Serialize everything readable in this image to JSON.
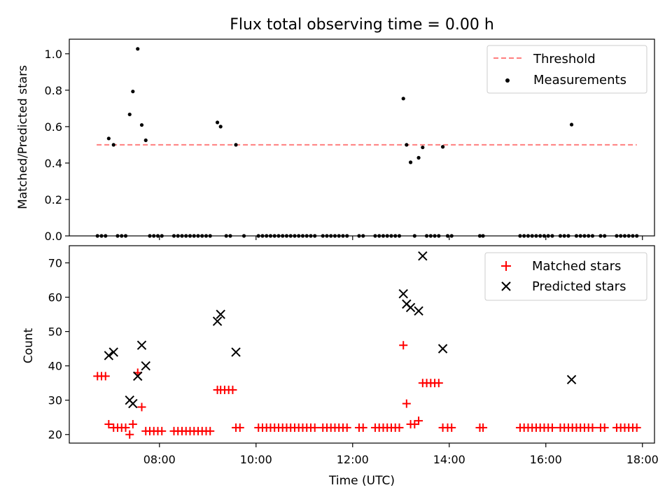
{
  "chart_data": [
    {
      "type": "scatter",
      "title": "Flux total observing time = 0.00 h",
      "xlabel": "",
      "ylabel": "Matched/Predicted stars",
      "xlim": [
        "06:08",
        "18:15"
      ],
      "ylim": [
        0,
        1.08
      ],
      "yticks": [
        0.0,
        0.2,
        0.4,
        0.6,
        0.8,
        1.0
      ],
      "ytick_labels": [
        "0.0",
        "0.2",
        "0.4",
        "0.6",
        "0.8",
        "1.0"
      ],
      "xticks": [
        "08:00",
        "10:00",
        "12:00",
        "14:00",
        "16:00",
        "18:00"
      ],
      "grid": false,
      "legend": "top-right",
      "threshold": {
        "name": "Threshold",
        "value": 0.5,
        "x_range": [
          "06:42",
          "17:53"
        ],
        "color": "#ff7f7f"
      },
      "series": [
        {
          "name": "Measurements",
          "marker": "dot",
          "color": "#000000",
          "points": [
            [
              "06:57",
              0.535
            ],
            [
              "07:03",
              0.5
            ],
            [
              "07:23",
              0.667
            ],
            [
              "07:27",
              0.793
            ],
            [
              "07:33",
              1.027
            ],
            [
              "07:38",
              0.609
            ],
            [
              "07:43",
              0.525
            ],
            [
              "09:12",
              0.623
            ],
            [
              "09:16",
              0.6
            ],
            [
              "09:35",
              0.5
            ],
            [
              "13:03",
              0.754
            ],
            [
              "13:07",
              0.5
            ],
            [
              "13:12",
              0.404
            ],
            [
              "13:22",
              0.429
            ],
            [
              "13:27",
              0.486
            ],
            [
              "13:52",
              0.489
            ],
            [
              "16:32",
              0.611
            ],
            [
              "06:43",
              0
            ],
            [
              "06:48",
              0
            ],
            [
              "06:53",
              0
            ],
            [
              "07:08",
              0
            ],
            [
              "07:13",
              0
            ],
            [
              "07:18",
              0
            ],
            [
              "07:48",
              0
            ],
            [
              "07:53",
              0
            ],
            [
              "07:58",
              0
            ],
            [
              "08:03",
              0
            ],
            [
              "08:18",
              0
            ],
            [
              "08:23",
              0
            ],
            [
              "08:28",
              0
            ],
            [
              "08:33",
              0
            ],
            [
              "08:38",
              0
            ],
            [
              "08:43",
              0
            ],
            [
              "08:48",
              0
            ],
            [
              "08:53",
              0
            ],
            [
              "08:58",
              0
            ],
            [
              "09:03",
              0
            ],
            [
              "09:23",
              0
            ],
            [
              "09:28",
              0
            ],
            [
              "09:45",
              0
            ],
            [
              "10:03",
              0
            ],
            [
              "10:08",
              0
            ],
            [
              "10:13",
              0
            ],
            [
              "10:18",
              0
            ],
            [
              "10:23",
              0
            ],
            [
              "10:28",
              0
            ],
            [
              "10:33",
              0
            ],
            [
              "10:38",
              0
            ],
            [
              "10:43",
              0
            ],
            [
              "10:48",
              0
            ],
            [
              "10:53",
              0
            ],
            [
              "10:58",
              0
            ],
            [
              "11:03",
              0
            ],
            [
              "11:08",
              0
            ],
            [
              "11:13",
              0
            ],
            [
              "11:23",
              0
            ],
            [
              "11:28",
              0
            ],
            [
              "11:33",
              0
            ],
            [
              "11:38",
              0
            ],
            [
              "11:43",
              0
            ],
            [
              "11:48",
              0
            ],
            [
              "11:53",
              0
            ],
            [
              "12:08",
              0
            ],
            [
              "12:13",
              0
            ],
            [
              "12:28",
              0
            ],
            [
              "12:33",
              0
            ],
            [
              "12:38",
              0
            ],
            [
              "12:43",
              0
            ],
            [
              "12:48",
              0
            ],
            [
              "12:53",
              0
            ],
            [
              "12:58",
              0
            ],
            [
              "13:17",
              0
            ],
            [
              "13:32",
              0
            ],
            [
              "13:37",
              0
            ],
            [
              "13:42",
              0
            ],
            [
              "13:47",
              0
            ],
            [
              "13:58",
              0
            ],
            [
              "14:03",
              0
            ],
            [
              "14:38",
              0
            ],
            [
              "14:42",
              0
            ],
            [
              "15:28",
              0
            ],
            [
              "15:33",
              0
            ],
            [
              "15:38",
              0
            ],
            [
              "15:43",
              0
            ],
            [
              "15:48",
              0
            ],
            [
              "15:53",
              0
            ],
            [
              "15:58",
              0
            ],
            [
              "16:03",
              0
            ],
            [
              "16:08",
              0
            ],
            [
              "16:18",
              0
            ],
            [
              "16:23",
              0
            ],
            [
              "16:28",
              0
            ],
            [
              "16:38",
              0
            ],
            [
              "16:43",
              0
            ],
            [
              "16:48",
              0
            ],
            [
              "16:53",
              0
            ],
            [
              "16:58",
              0
            ],
            [
              "17:08",
              0
            ],
            [
              "17:13",
              0
            ],
            [
              "17:28",
              0
            ],
            [
              "17:33",
              0
            ],
            [
              "17:38",
              0
            ],
            [
              "17:43",
              0
            ],
            [
              "17:48",
              0
            ],
            [
              "17:53",
              0
            ]
          ]
        }
      ]
    },
    {
      "type": "scatter",
      "title": "",
      "xlabel": "Time (UTC)",
      "ylabel": "Count",
      "xlim": [
        "06:08",
        "18:15"
      ],
      "ylim": [
        17.5,
        75
      ],
      "yticks": [
        20,
        30,
        40,
        50,
        60,
        70
      ],
      "ytick_labels": [
        "20",
        "30",
        "40",
        "50",
        "60",
        "70"
      ],
      "xticks": [
        "08:00",
        "10:00",
        "12:00",
        "14:00",
        "16:00",
        "18:00"
      ],
      "xtick_labels": [
        "08:00",
        "10:00",
        "12:00",
        "14:00",
        "16:00",
        "18:00"
      ],
      "grid": false,
      "legend": "top-right",
      "series": [
        {
          "name": "Matched stars",
          "marker": "plus",
          "color": "#ff0000",
          "points": [
            [
              "06:43",
              37
            ],
            [
              "06:48",
              37
            ],
            [
              "06:53",
              37
            ],
            [
              "06:57",
              23
            ],
            [
              "07:03",
              22
            ],
            [
              "07:08",
              22
            ],
            [
              "07:13",
              22
            ],
            [
              "07:18",
              22
            ],
            [
              "07:23",
              20
            ],
            [
              "07:27",
              23
            ],
            [
              "07:33",
              38
            ],
            [
              "07:38",
              28
            ],
            [
              "07:43",
              21
            ],
            [
              "07:48",
              21
            ],
            [
              "07:53",
              21
            ],
            [
              "07:58",
              21
            ],
            [
              "08:03",
              21
            ],
            [
              "08:18",
              21
            ],
            [
              "08:23",
              21
            ],
            [
              "08:28",
              21
            ],
            [
              "08:33",
              21
            ],
            [
              "08:38",
              21
            ],
            [
              "08:43",
              21
            ],
            [
              "08:48",
              21
            ],
            [
              "08:53",
              21
            ],
            [
              "08:58",
              21
            ],
            [
              "09:03",
              21
            ],
            [
              "09:12",
              33
            ],
            [
              "09:16",
              33
            ],
            [
              "09:21",
              33
            ],
            [
              "09:26",
              33
            ],
            [
              "09:31",
              33
            ],
            [
              "09:35",
              22
            ],
            [
              "09:40",
              22
            ],
            [
              "10:03",
              22
            ],
            [
              "10:08",
              22
            ],
            [
              "10:13",
              22
            ],
            [
              "10:18",
              22
            ],
            [
              "10:23",
              22
            ],
            [
              "10:28",
              22
            ],
            [
              "10:33",
              22
            ],
            [
              "10:38",
              22
            ],
            [
              "10:43",
              22
            ],
            [
              "10:48",
              22
            ],
            [
              "10:53",
              22
            ],
            [
              "10:58",
              22
            ],
            [
              "11:03",
              22
            ],
            [
              "11:08",
              22
            ],
            [
              "11:13",
              22
            ],
            [
              "11:23",
              22
            ],
            [
              "11:28",
              22
            ],
            [
              "11:33",
              22
            ],
            [
              "11:38",
              22
            ],
            [
              "11:43",
              22
            ],
            [
              "11:48",
              22
            ],
            [
              "11:53",
              22
            ],
            [
              "12:08",
              22
            ],
            [
              "12:13",
              22
            ],
            [
              "12:28",
              22
            ],
            [
              "12:33",
              22
            ],
            [
              "12:38",
              22
            ],
            [
              "12:43",
              22
            ],
            [
              "12:48",
              22
            ],
            [
              "12:53",
              22
            ],
            [
              "12:58",
              22
            ],
            [
              "13:03",
              46
            ],
            [
              "13:07",
              29
            ],
            [
              "13:12",
              23
            ],
            [
              "13:17",
              23
            ],
            [
              "13:22",
              24
            ],
            [
              "13:27",
              35
            ],
            [
              "13:32",
              35
            ],
            [
              "13:37",
              35
            ],
            [
              "13:42",
              35
            ],
            [
              "13:47",
              35
            ],
            [
              "13:52",
              22
            ],
            [
              "13:58",
              22
            ],
            [
              "14:03",
              22
            ],
            [
              "14:38",
              22
            ],
            [
              "14:42",
              22
            ],
            [
              "15:28",
              22
            ],
            [
              "15:33",
              22
            ],
            [
              "15:38",
              22
            ],
            [
              "15:43",
              22
            ],
            [
              "15:48",
              22
            ],
            [
              "15:53",
              22
            ],
            [
              "15:58",
              22
            ],
            [
              "16:03",
              22
            ],
            [
              "16:08",
              22
            ],
            [
              "16:18",
              22
            ],
            [
              "16:23",
              22
            ],
            [
              "16:28",
              22
            ],
            [
              "16:33",
              22
            ],
            [
              "16:38",
              22
            ],
            [
              "16:43",
              22
            ],
            [
              "16:48",
              22
            ],
            [
              "16:53",
              22
            ],
            [
              "16:58",
              22
            ],
            [
              "17:08",
              22
            ],
            [
              "17:13",
              22
            ],
            [
              "17:28",
              22
            ],
            [
              "17:33",
              22
            ],
            [
              "17:38",
              22
            ],
            [
              "17:43",
              22
            ],
            [
              "17:48",
              22
            ],
            [
              "17:53",
              22
            ]
          ]
        },
        {
          "name": "Predicted stars",
          "marker": "x",
          "color": "#000000",
          "points": [
            [
              "06:57",
              43
            ],
            [
              "07:03",
              44
            ],
            [
              "07:23",
              30
            ],
            [
              "07:27",
              29
            ],
            [
              "07:33",
              37
            ],
            [
              "07:38",
              46
            ],
            [
              "07:43",
              40
            ],
            [
              "09:12",
              53
            ],
            [
              "09:16",
              55
            ],
            [
              "09:35",
              44
            ],
            [
              "13:03",
              61
            ],
            [
              "13:07",
              58
            ],
            [
              "13:12",
              57
            ],
            [
              "13:22",
              56
            ],
            [
              "13:27",
              72
            ],
            [
              "13:52",
              45
            ],
            [
              "16:32",
              36
            ]
          ]
        }
      ]
    }
  ]
}
